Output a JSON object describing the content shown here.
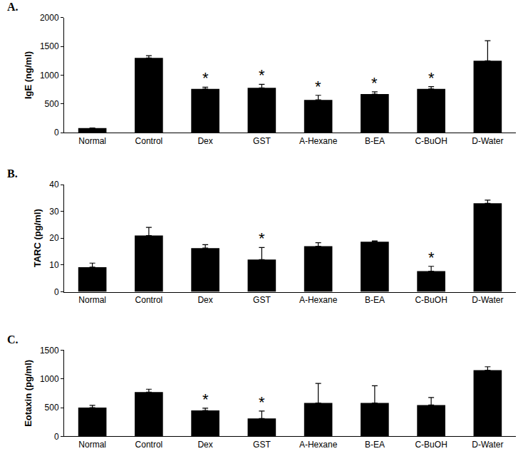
{
  "chart_data": [
    {
      "type": "bar",
      "title": "A.",
      "y_label": "IgE (ng/ml)",
      "categories": [
        "Normal",
        "Control",
        "Dex",
        "GST",
        "A-Hexane",
        "B-EA",
        "C-BuOH",
        "D-Water"
      ],
      "values": [
        80,
        1300,
        760,
        780,
        570,
        670,
        760,
        1250
      ],
      "errors": [
        0,
        40,
        30,
        60,
        80,
        40,
        40,
        350
      ],
      "color": "#000000",
      "ylim": [
        0,
        2000
      ],
      "yticks": [
        0,
        500,
        1000,
        1500,
        2000
      ],
      "grid": false,
      "annotations": [
        {
          "category": "Dex",
          "text": "*"
        },
        {
          "category": "GST",
          "text": "*"
        },
        {
          "category": "A-Hexane",
          "text": "*"
        },
        {
          "category": "B-EA",
          "text": "*"
        },
        {
          "category": "C-BuOH",
          "text": "*"
        }
      ]
    },
    {
      "type": "bar",
      "title": "B.",
      "y_label": "TARC (pg/ml)",
      "categories": [
        "Normal",
        "Control",
        "Dex",
        "GST",
        "A-Hexane",
        "B-EA",
        "C-BuOH",
        "D-Water"
      ],
      "values": [
        9.2,
        21,
        16.3,
        12,
        17,
        18.7,
        7.7,
        33
      ],
      "errors": [
        1.5,
        3,
        1.3,
        4.5,
        1.3,
        0.3,
        1.8,
        1.2
      ],
      "color": "#000000",
      "ylim": [
        0,
        40
      ],
      "yticks": [
        0,
        10,
        20,
        30,
        40
      ],
      "grid": false,
      "annotations": [
        {
          "category": "GST",
          "text": "*"
        },
        {
          "category": "C-BuOH",
          "text": "*"
        }
      ]
    },
    {
      "type": "bar",
      "title": "C.",
      "y_label": "Eotaxin (pg/ml)",
      "categories": [
        "Normal",
        "Control",
        "Dex",
        "GST",
        "A-Hexane",
        "B-EA",
        "C-BuOH",
        "D-Water"
      ],
      "values": [
        500,
        770,
        450,
        310,
        580,
        580,
        545,
        1150
      ],
      "errors": [
        40,
        50,
        40,
        130,
        340,
        300,
        130,
        60
      ],
      "color": "#000000",
      "ylim": [
        0,
        1500
      ],
      "yticks": [
        0,
        500,
        1000,
        1500
      ],
      "grid": false,
      "annotations": [
        {
          "category": "Dex",
          "text": "*"
        },
        {
          "category": "GST",
          "text": "*"
        }
      ]
    }
  ]
}
